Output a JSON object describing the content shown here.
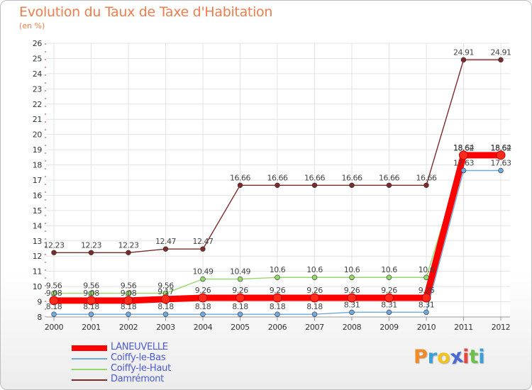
{
  "title": "Evolution du Taux de Taxe d'Habitation",
  "subtitle": "(en %)",
  "brand": {
    "letters": [
      "P",
      "r",
      "o",
      "x",
      "i",
      "t",
      "i"
    ],
    "colors": [
      "#f28a26",
      "#3aa0dc",
      "#f2c31c",
      "#4a69d6",
      "#e8443a",
      "#6cc04a",
      "#3aa0dc"
    ]
  },
  "chart_data": {
    "type": "line",
    "x": [
      "2000",
      "2001",
      "2002",
      "2003",
      "2004",
      "2005",
      "2006",
      "2007",
      "2008",
      "2009",
      "2010",
      "2011",
      "2012"
    ],
    "ylim": [
      8,
      26
    ],
    "yticks": [
      "8",
      "9",
      "10",
      "11",
      "12",
      "13",
      "14",
      "15",
      "16",
      "17",
      "18",
      "19",
      "20",
      "21",
      "22",
      "23",
      "24",
      "25",
      "26"
    ],
    "grid": true,
    "legend_position": "bottom-left",
    "series": [
      {
        "name": "LANEUVELLE",
        "color": "#ff0000",
        "values": [
          9.08,
          9.08,
          9.08,
          9.17,
          9.26,
          9.26,
          9.26,
          9.26,
          9.26,
          9.26,
          9.26,
          18.64,
          18.64
        ],
        "labels": [
          "9.08",
          "9.08",
          "9.08",
          "9.17",
          "9.26",
          "9.26",
          "9.26",
          "9.26",
          "9.26",
          "9.26",
          "9.26",
          "18.64",
          "18.64"
        ]
      },
      {
        "name": "Coiffy-le-Bas",
        "color": "#6fa8dc",
        "values": [
          8.18,
          8.18,
          8.18,
          8.18,
          8.18,
          8.18,
          8.18,
          8.18,
          8.31,
          8.31,
          8.31,
          17.63,
          17.63
        ],
        "labels": [
          "8.18",
          "8.18",
          "8.18",
          "8.18",
          "8.18",
          "8.18",
          "8.18",
          "8.18",
          "8.31",
          "8.31",
          "8.31",
          "17.63",
          "17.63"
        ]
      },
      {
        "name": "Coiffy-le-Haut",
        "color": "#93d86a",
        "values": [
          9.56,
          9.56,
          9.56,
          9.56,
          10.49,
          10.49,
          10.6,
          10.6,
          10.6,
          10.6,
          10.6,
          18.62,
          18.62
        ],
        "labels": [
          "9.56",
          "9.56",
          "9.56",
          "9.56",
          "10.49",
          "10.49",
          "10.6",
          "10.6",
          "10.6",
          "10.6",
          "10.6",
          "18.62",
          "18.62"
        ]
      },
      {
        "name": "Damrémont",
        "color": "#7b2b2b",
        "values": [
          12.23,
          12.23,
          12.23,
          12.47,
          12.47,
          16.66,
          16.66,
          16.66,
          16.66,
          16.66,
          16.66,
          24.91,
          24.91
        ],
        "labels": [
          "12.23",
          "12.23",
          "12.23",
          "12.47",
          "12.47",
          "16.66",
          "16.66",
          "16.66",
          "16.66",
          "16.66",
          "16.66",
          "24.91",
          "24.91"
        ]
      }
    ]
  }
}
